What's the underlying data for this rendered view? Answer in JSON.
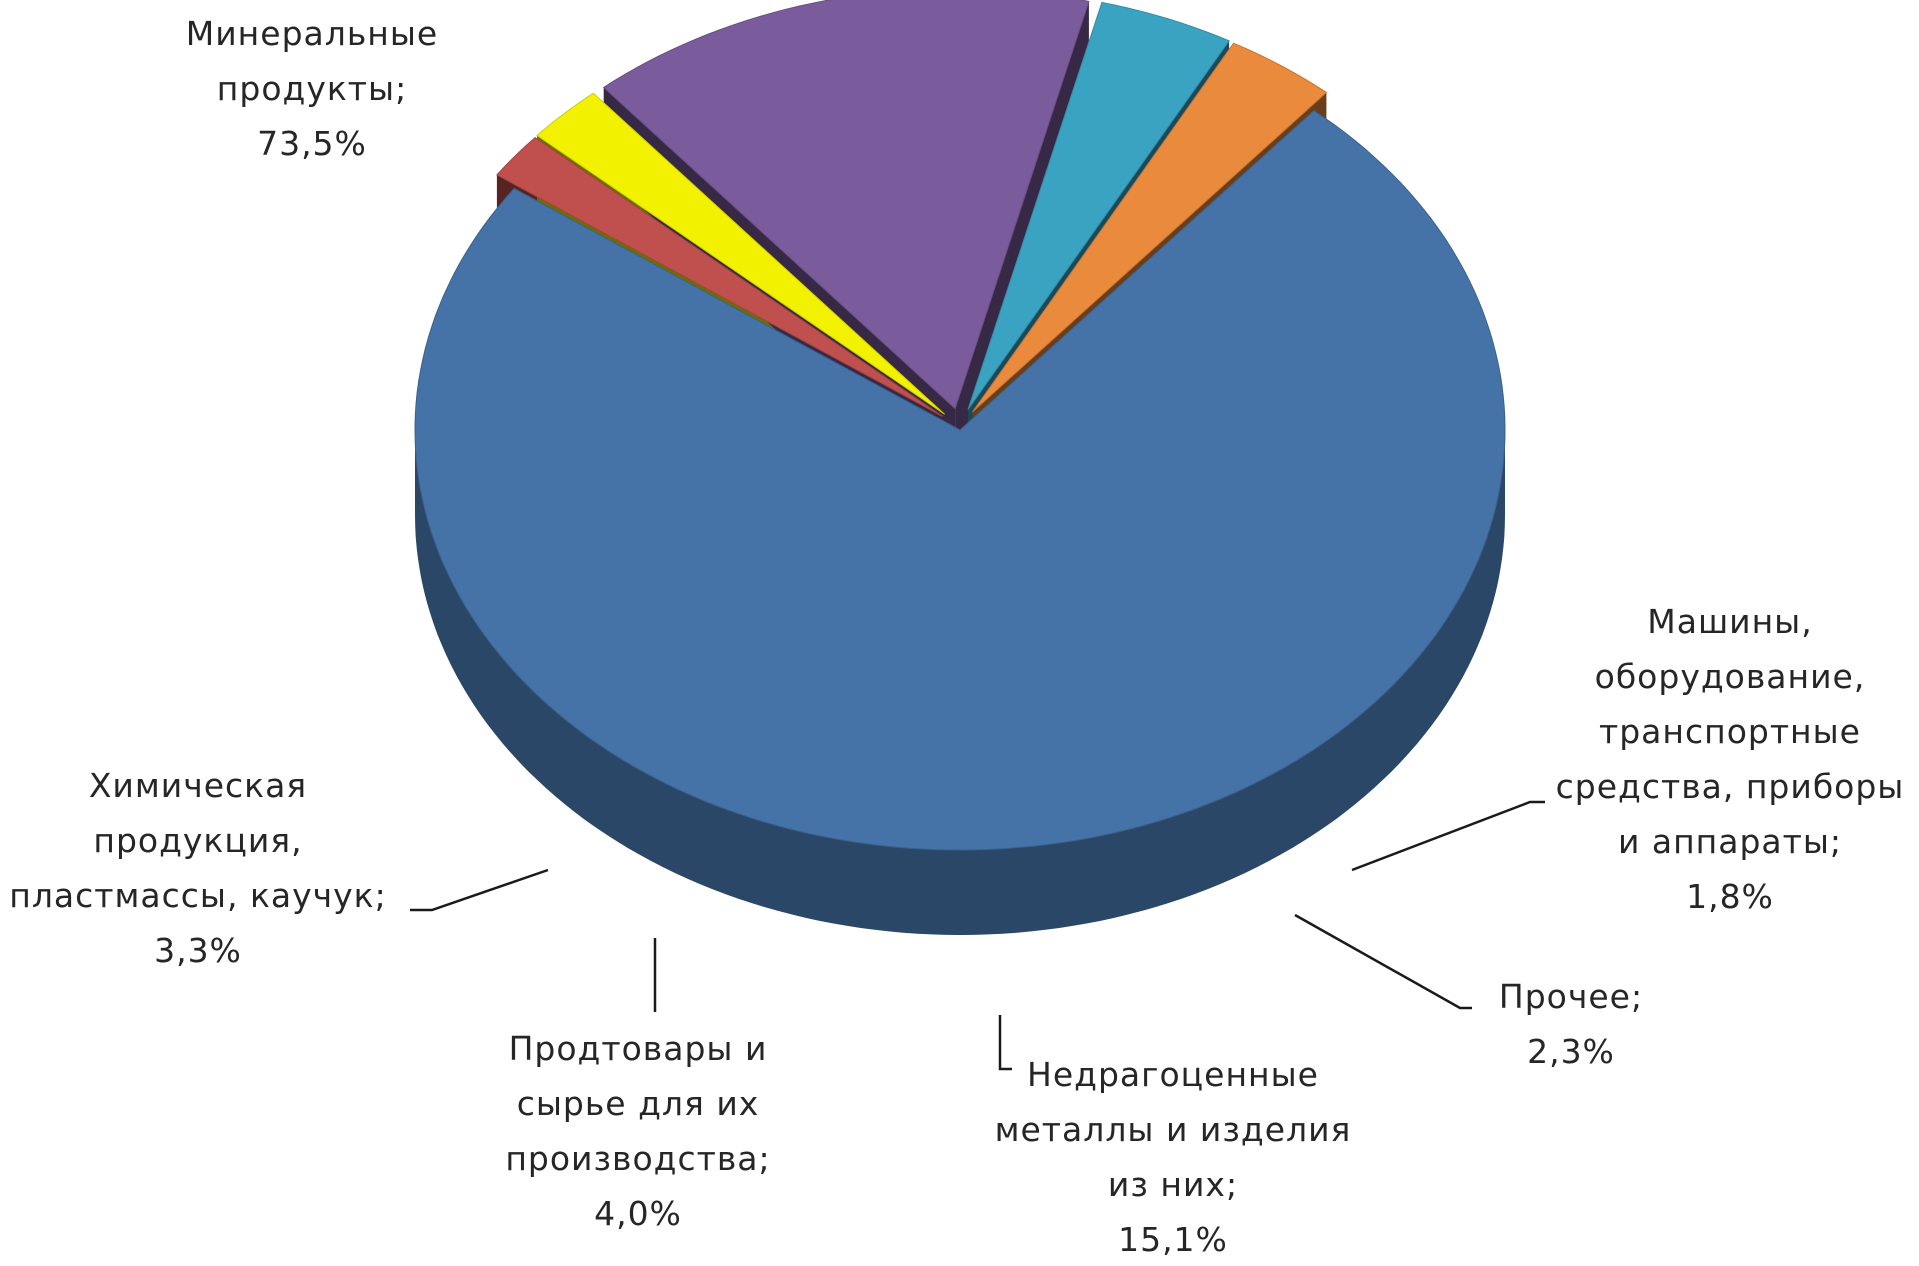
{
  "chart_data": {
    "type": "pie",
    "title": "",
    "slices": [
      {
        "label_lines": [
          "Минеральные",
          "продукты;",
          "73,5%"
        ],
        "category": "Минеральные продукты",
        "value": 73.5,
        "color": "#4572a7"
      },
      {
        "label_lines": [
          "Машины,",
          "оборудование,",
          "транспортные",
          "средства, приборы",
          "и аппараты;",
          "1,8%"
        ],
        "category": "Машины, оборудование, транспортные средства, приборы и аппараты",
        "value": 1.8,
        "color": "#c0504d"
      },
      {
        "label_lines": [
          "Прочее;",
          "2,3%"
        ],
        "category": "Прочее",
        "value": 2.3,
        "color": "#f2f200"
      },
      {
        "label_lines": [
          "Недрагоценные",
          "металлы и изделия",
          "из них;",
          "15,1%"
        ],
        "category": "Недрагоценные металлы и изделия из них",
        "value": 15.1,
        "color": "#7a5c9c"
      },
      {
        "label_lines": [
          "Продтовары и",
          "сырье для их",
          "производства;",
          "4,0%"
        ],
        "category": "Продтовары и сырье для их производства",
        "value": 4.0,
        "color": "#3ba3c2"
      },
      {
        "label_lines": [
          "Химическая",
          "продукция,",
          "пластмассы, каучук;",
          "3,3%"
        ],
        "category": "Химическая продукция, пластмассы, каучук",
        "value": 3.3,
        "color": "#ea8a3d"
      }
    ],
    "legend": "none",
    "style": "3d-exploded-pie"
  }
}
